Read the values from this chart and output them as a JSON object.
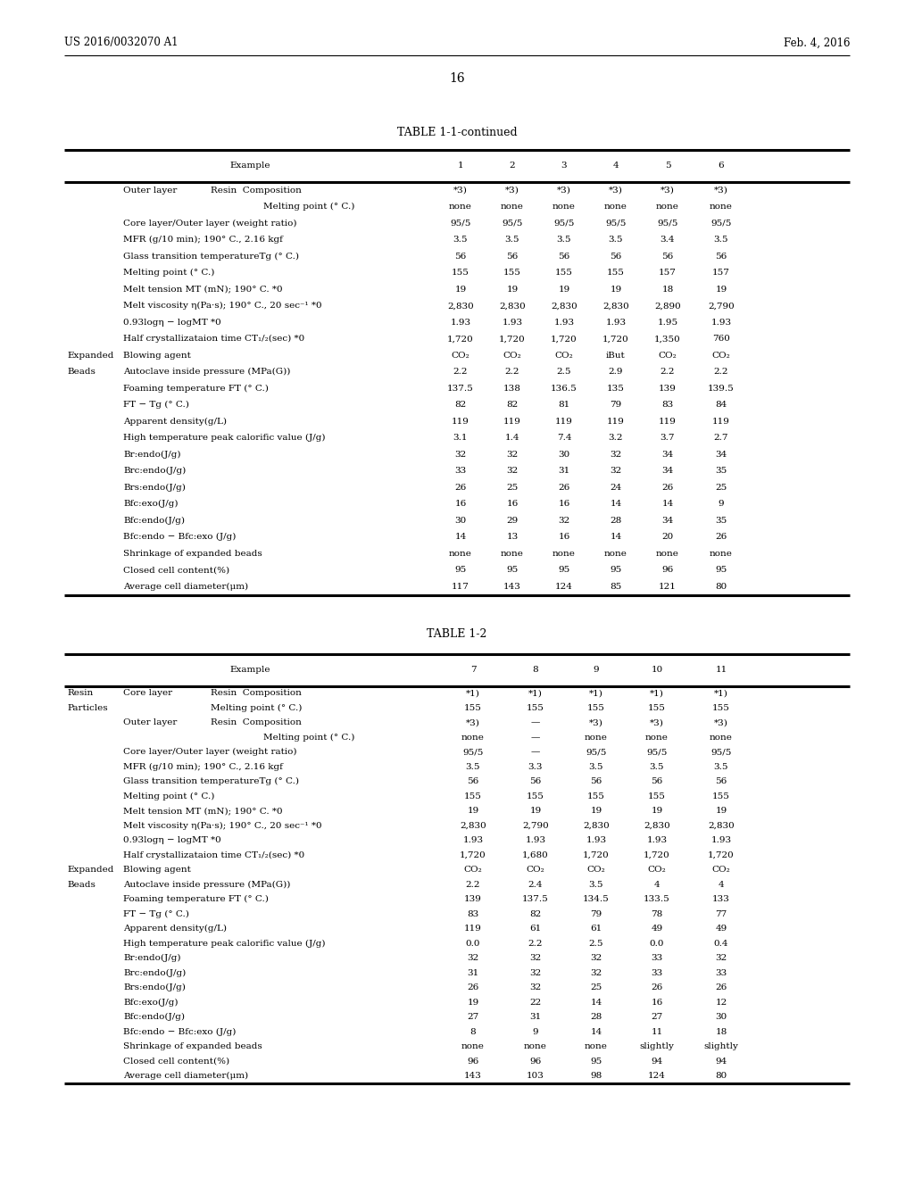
{
  "header_left": "US 2016/0032070 A1",
  "header_right": "Feb. 4, 2016",
  "page_number": "16",
  "table1_title": "TABLE 1-1-continued",
  "table2_title": "TABLE 1-2",
  "t1_cols": [
    "1",
    "2",
    "3",
    "4",
    "5",
    "6"
  ],
  "t1_rows": [
    {
      "L0": "Outer layer",
      "L1": "Resin  Composition",
      "L2": "",
      "vals": [
        "*3)",
        "*3)",
        "*3)",
        "*3)",
        "*3)",
        "*3)"
      ]
    },
    {
      "L0": "",
      "L1": "",
      "L2": "Melting point (° C.)",
      "vals": [
        "none",
        "none",
        "none",
        "none",
        "none",
        "none"
      ]
    },
    {
      "L0": "Core layer/Outer layer (weight ratio)",
      "L1": "",
      "L2": "",
      "vals": [
        "95/5",
        "95/5",
        "95/5",
        "95/5",
        "95/5",
        "95/5"
      ]
    },
    {
      "L0": "MFR (g/10 min); 190° C., 2.16 kgf",
      "L1": "",
      "L2": "",
      "vals": [
        "3.5",
        "3.5",
        "3.5",
        "3.5",
        "3.4",
        "3.5"
      ]
    },
    {
      "L0": "Glass transition temperatureTg (° C.)",
      "L1": "",
      "L2": "",
      "vals": [
        "56",
        "56",
        "56",
        "56",
        "56",
        "56"
      ]
    },
    {
      "L0": "Melting point (° C.)",
      "L1": "",
      "L2": "",
      "vals": [
        "155",
        "155",
        "155",
        "155",
        "157",
        "157"
      ]
    },
    {
      "L0": "Melt tension MT (mN); 190° C. *0",
      "L1": "",
      "L2": "",
      "vals": [
        "19",
        "19",
        "19",
        "19",
        "18",
        "19"
      ]
    },
    {
      "L0": "Melt viscosity η(Pa·s); 190° C., 20 sec⁻¹ *0",
      "L1": "",
      "L2": "",
      "vals": [
        "2,830",
        "2,830",
        "2,830",
        "2,830",
        "2,890",
        "2,790"
      ]
    },
    {
      "L0": "0.93logη − logMT *0",
      "L1": "",
      "L2": "",
      "vals": [
        "1.93",
        "1.93",
        "1.93",
        "1.93",
        "1.95",
        "1.93"
      ]
    },
    {
      "L0": "Half crystallizataion time CT₁/₂(sec) *0",
      "L1": "",
      "L2": "",
      "vals": [
        "1,720",
        "1,720",
        "1,720",
        "1,720",
        "1,350",
        "760"
      ]
    },
    {
      "L0": "Expanded",
      "L1": "Blowing agent",
      "L2": "",
      "vals": [
        "CO₂",
        "CO₂",
        "CO₂",
        "iBut",
        "CO₂",
        "CO₂"
      ]
    },
    {
      "L0": "Beads",
      "L1": "Autoclave inside pressure (MPa(G))",
      "L2": "",
      "vals": [
        "2.2",
        "2.2",
        "2.5",
        "2.9",
        "2.2",
        "2.2"
      ]
    },
    {
      "L0": "",
      "L1": "Foaming temperature FT (° C.)",
      "L2": "",
      "vals": [
        "137.5",
        "138",
        "136.5",
        "135",
        "139",
        "139.5"
      ]
    },
    {
      "L0": "",
      "L1": "FT − Tg (° C.)",
      "L2": "",
      "vals": [
        "82",
        "82",
        "81",
        "79",
        "83",
        "84"
      ]
    },
    {
      "L0": "",
      "L1": "Apparent density(g/L)",
      "L2": "",
      "vals": [
        "119",
        "119",
        "119",
        "119",
        "119",
        "119"
      ]
    },
    {
      "L0": "",
      "L1": "High temperature peak calorific value (J/g)",
      "L2": "",
      "vals": [
        "3.1",
        "1.4",
        "7.4",
        "3.2",
        "3.7",
        "2.7"
      ]
    },
    {
      "L0": "",
      "L1": "Br:endo(J/g)",
      "L2": "",
      "vals": [
        "32",
        "32",
        "30",
        "32",
        "34",
        "34"
      ]
    },
    {
      "L0": "",
      "L1": "Brc:endo(J/g)",
      "L2": "",
      "vals": [
        "33",
        "32",
        "31",
        "32",
        "34",
        "35"
      ]
    },
    {
      "L0": "",
      "L1": "Brs:endo(J/g)",
      "L2": "",
      "vals": [
        "26",
        "25",
        "26",
        "24",
        "26",
        "25"
      ]
    },
    {
      "L0": "",
      "L1": "Bfc:exo(J/g)",
      "L2": "",
      "vals": [
        "16",
        "16",
        "16",
        "14",
        "14",
        "9"
      ]
    },
    {
      "L0": "",
      "L1": "Bfc:endo(J/g)",
      "L2": "",
      "vals": [
        "30",
        "29",
        "32",
        "28",
        "34",
        "35"
      ]
    },
    {
      "L0": "",
      "L1": "Bfc:endo − Bfc:exo (J/g)",
      "L2": "",
      "vals": [
        "14",
        "13",
        "16",
        "14",
        "20",
        "26"
      ]
    },
    {
      "L0": "",
      "L1": "Shrinkage of expanded beads",
      "L2": "",
      "vals": [
        "none",
        "none",
        "none",
        "none",
        "none",
        "none"
      ]
    },
    {
      "L0": "",
      "L1": "Closed cell content(%)",
      "L2": "",
      "vals": [
        "95",
        "95",
        "95",
        "95",
        "96",
        "95"
      ]
    },
    {
      "L0": "",
      "L1": "Average cell diameter(μm)",
      "L2": "",
      "vals": [
        "117",
        "143",
        "124",
        "85",
        "121",
        "80"
      ]
    }
  ],
  "t2_cols": [
    "7",
    "8",
    "9",
    "10",
    "11"
  ],
  "t2_rows": [
    {
      "L0": "Resin",
      "L1": "Core layer",
      "L2": "Resin  Composition",
      "vals": [
        "*1)",
        "*1)",
        "*1)",
        "*1)",
        "*1)"
      ]
    },
    {
      "L0": "Particles",
      "L1": "",
      "L2": "Melting point (° C.)",
      "vals": [
        "155",
        "155",
        "155",
        "155",
        "155"
      ]
    },
    {
      "L0": "",
      "L1": "Outer layer",
      "L2": "Resin  Composition",
      "vals": [
        "*3)",
        "—",
        "*3)",
        "*3)",
        "*3)"
      ]
    },
    {
      "L0": "",
      "L1": "",
      "L2": "Melting point (° C.)",
      "vals": [
        "none",
        "—",
        "none",
        "none",
        "none"
      ]
    },
    {
      "L0": "Core layer/Outer layer (weight ratio)",
      "L1": "",
      "L2": "",
      "vals": [
        "95/5",
        "—",
        "95/5",
        "95/5",
        "95/5"
      ]
    },
    {
      "L0": "MFR (g/10 min); 190° C., 2.16 kgf",
      "L1": "",
      "L2": "",
      "vals": [
        "3.5",
        "3.3",
        "3.5",
        "3.5",
        "3.5"
      ]
    },
    {
      "L0": "Glass transition temperatureTg (° C.)",
      "L1": "",
      "L2": "",
      "vals": [
        "56",
        "56",
        "56",
        "56",
        "56"
      ]
    },
    {
      "L0": "Melting point (° C.)",
      "L1": "",
      "L2": "",
      "vals": [
        "155",
        "155",
        "155",
        "155",
        "155"
      ]
    },
    {
      "L0": "Melt tension MT (mN); 190° C. *0",
      "L1": "",
      "L2": "",
      "vals": [
        "19",
        "19",
        "19",
        "19",
        "19"
      ]
    },
    {
      "L0": "Melt viscosity η(Pa·s); 190° C., 20 sec⁻¹ *0",
      "L1": "",
      "L2": "",
      "vals": [
        "2,830",
        "2,790",
        "2,830",
        "2,830",
        "2,830"
      ]
    },
    {
      "L0": "0.93logη − logMT *0",
      "L1": "",
      "L2": "",
      "vals": [
        "1.93",
        "1.93",
        "1.93",
        "1.93",
        "1.93"
      ]
    },
    {
      "L0": "Half crystallizataion time CT₁/₂(sec) *0",
      "L1": "",
      "L2": "",
      "vals": [
        "1,720",
        "1,680",
        "1,720",
        "1,720",
        "1,720"
      ]
    },
    {
      "L0": "Expanded",
      "L1": "Blowing agent",
      "L2": "",
      "vals": [
        "CO₂",
        "CO₂",
        "CO₂",
        "CO₂",
        "CO₂"
      ]
    },
    {
      "L0": "Beads",
      "L1": "Autoclave inside pressure (MPa(G))",
      "L2": "",
      "vals": [
        "2.2",
        "2.4",
        "3.5",
        "4",
        "4"
      ]
    },
    {
      "L0": "",
      "L1": "Foaming temperature FT (° C.)",
      "L2": "",
      "vals": [
        "139",
        "137.5",
        "134.5",
        "133.5",
        "133"
      ]
    },
    {
      "L0": "",
      "L1": "FT − Tg (° C.)",
      "L2": "",
      "vals": [
        "83",
        "82",
        "79",
        "78",
        "77"
      ]
    },
    {
      "L0": "",
      "L1": "Apparent density(g/L)",
      "L2": "",
      "vals": [
        "119",
        "61",
        "61",
        "49",
        "49"
      ]
    },
    {
      "L0": "",
      "L1": "High temperature peak calorific value (J/g)",
      "L2": "",
      "vals": [
        "0.0",
        "2.2",
        "2.5",
        "0.0",
        "0.4"
      ]
    },
    {
      "L0": "",
      "L1": "Br:endo(J/g)",
      "L2": "",
      "vals": [
        "32",
        "32",
        "32",
        "33",
        "32"
      ]
    },
    {
      "L0": "",
      "L1": "Brc:endo(J/g)",
      "L2": "",
      "vals": [
        "31",
        "32",
        "32",
        "33",
        "33"
      ]
    },
    {
      "L0": "",
      "L1": "Brs:endo(J/g)",
      "L2": "",
      "vals": [
        "26",
        "32",
        "25",
        "26",
        "26"
      ]
    },
    {
      "L0": "",
      "L1": "Bfc:exo(J/g)",
      "L2": "",
      "vals": [
        "19",
        "22",
        "14",
        "16",
        "12"
      ]
    },
    {
      "L0": "",
      "L1": "Bfc:endo(J/g)",
      "L2": "",
      "vals": [
        "27",
        "31",
        "28",
        "27",
        "30"
      ]
    },
    {
      "L0": "",
      "L1": "Bfc:endo − Bfc:exo (J/g)",
      "L2": "",
      "vals": [
        "8",
        "9",
        "14",
        "11",
        "18"
      ]
    },
    {
      "L0": "",
      "L1": "Shrinkage of expanded beads",
      "L2": "",
      "vals": [
        "none",
        "none",
        "none",
        "slightly",
        "slightly"
      ]
    },
    {
      "L0": "",
      "L1": "Closed cell content(%)",
      "L2": "",
      "vals": [
        "96",
        "96",
        "95",
        "94",
        "94"
      ]
    },
    {
      "L0": "",
      "L1": "Average cell diameter(μm)",
      "L2": "",
      "vals": [
        "143",
        "103",
        "98",
        "124",
        "80"
      ]
    }
  ]
}
